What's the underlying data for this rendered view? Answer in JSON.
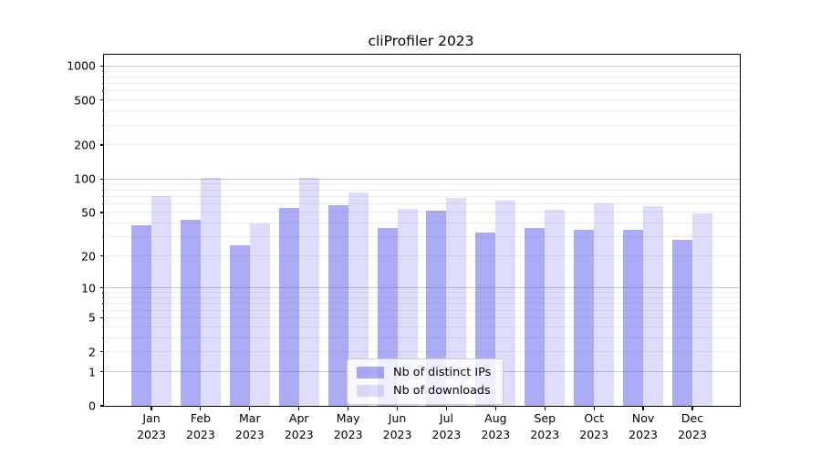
{
  "title": "cliProfiler 2023",
  "chart_data": {
    "type": "bar",
    "title": "cliProfiler 2023",
    "categories": [
      "Jan",
      "Feb",
      "Mar",
      "Apr",
      "May",
      "Jun",
      "Jul",
      "Aug",
      "Sep",
      "Oct",
      "Nov",
      "Dec"
    ],
    "year_label": "2023",
    "series": [
      {
        "name": "Nb of distinct IPs",
        "color": "rgba(85,85,235,0.5)",
        "values": [
          38,
          43,
          25,
          55,
          58,
          36,
          52,
          33,
          36,
          35,
          35,
          28
        ]
      },
      {
        "name": "Nb of downloads",
        "color": "rgba(85,85,235,0.2)",
        "values": [
          70,
          102,
          40,
          102,
          76,
          54,
          68,
          64,
          53,
          60,
          57,
          49
        ]
      }
    ],
    "yscale": "log1p",
    "y_ticks": [
      1000,
      500,
      200,
      100,
      50,
      20,
      10,
      5,
      2,
      1,
      0
    ],
    "ylim": [
      0,
      1259
    ],
    "xlabel": "",
    "ylabel": "",
    "grid": true,
    "legend_position": "lower center"
  }
}
